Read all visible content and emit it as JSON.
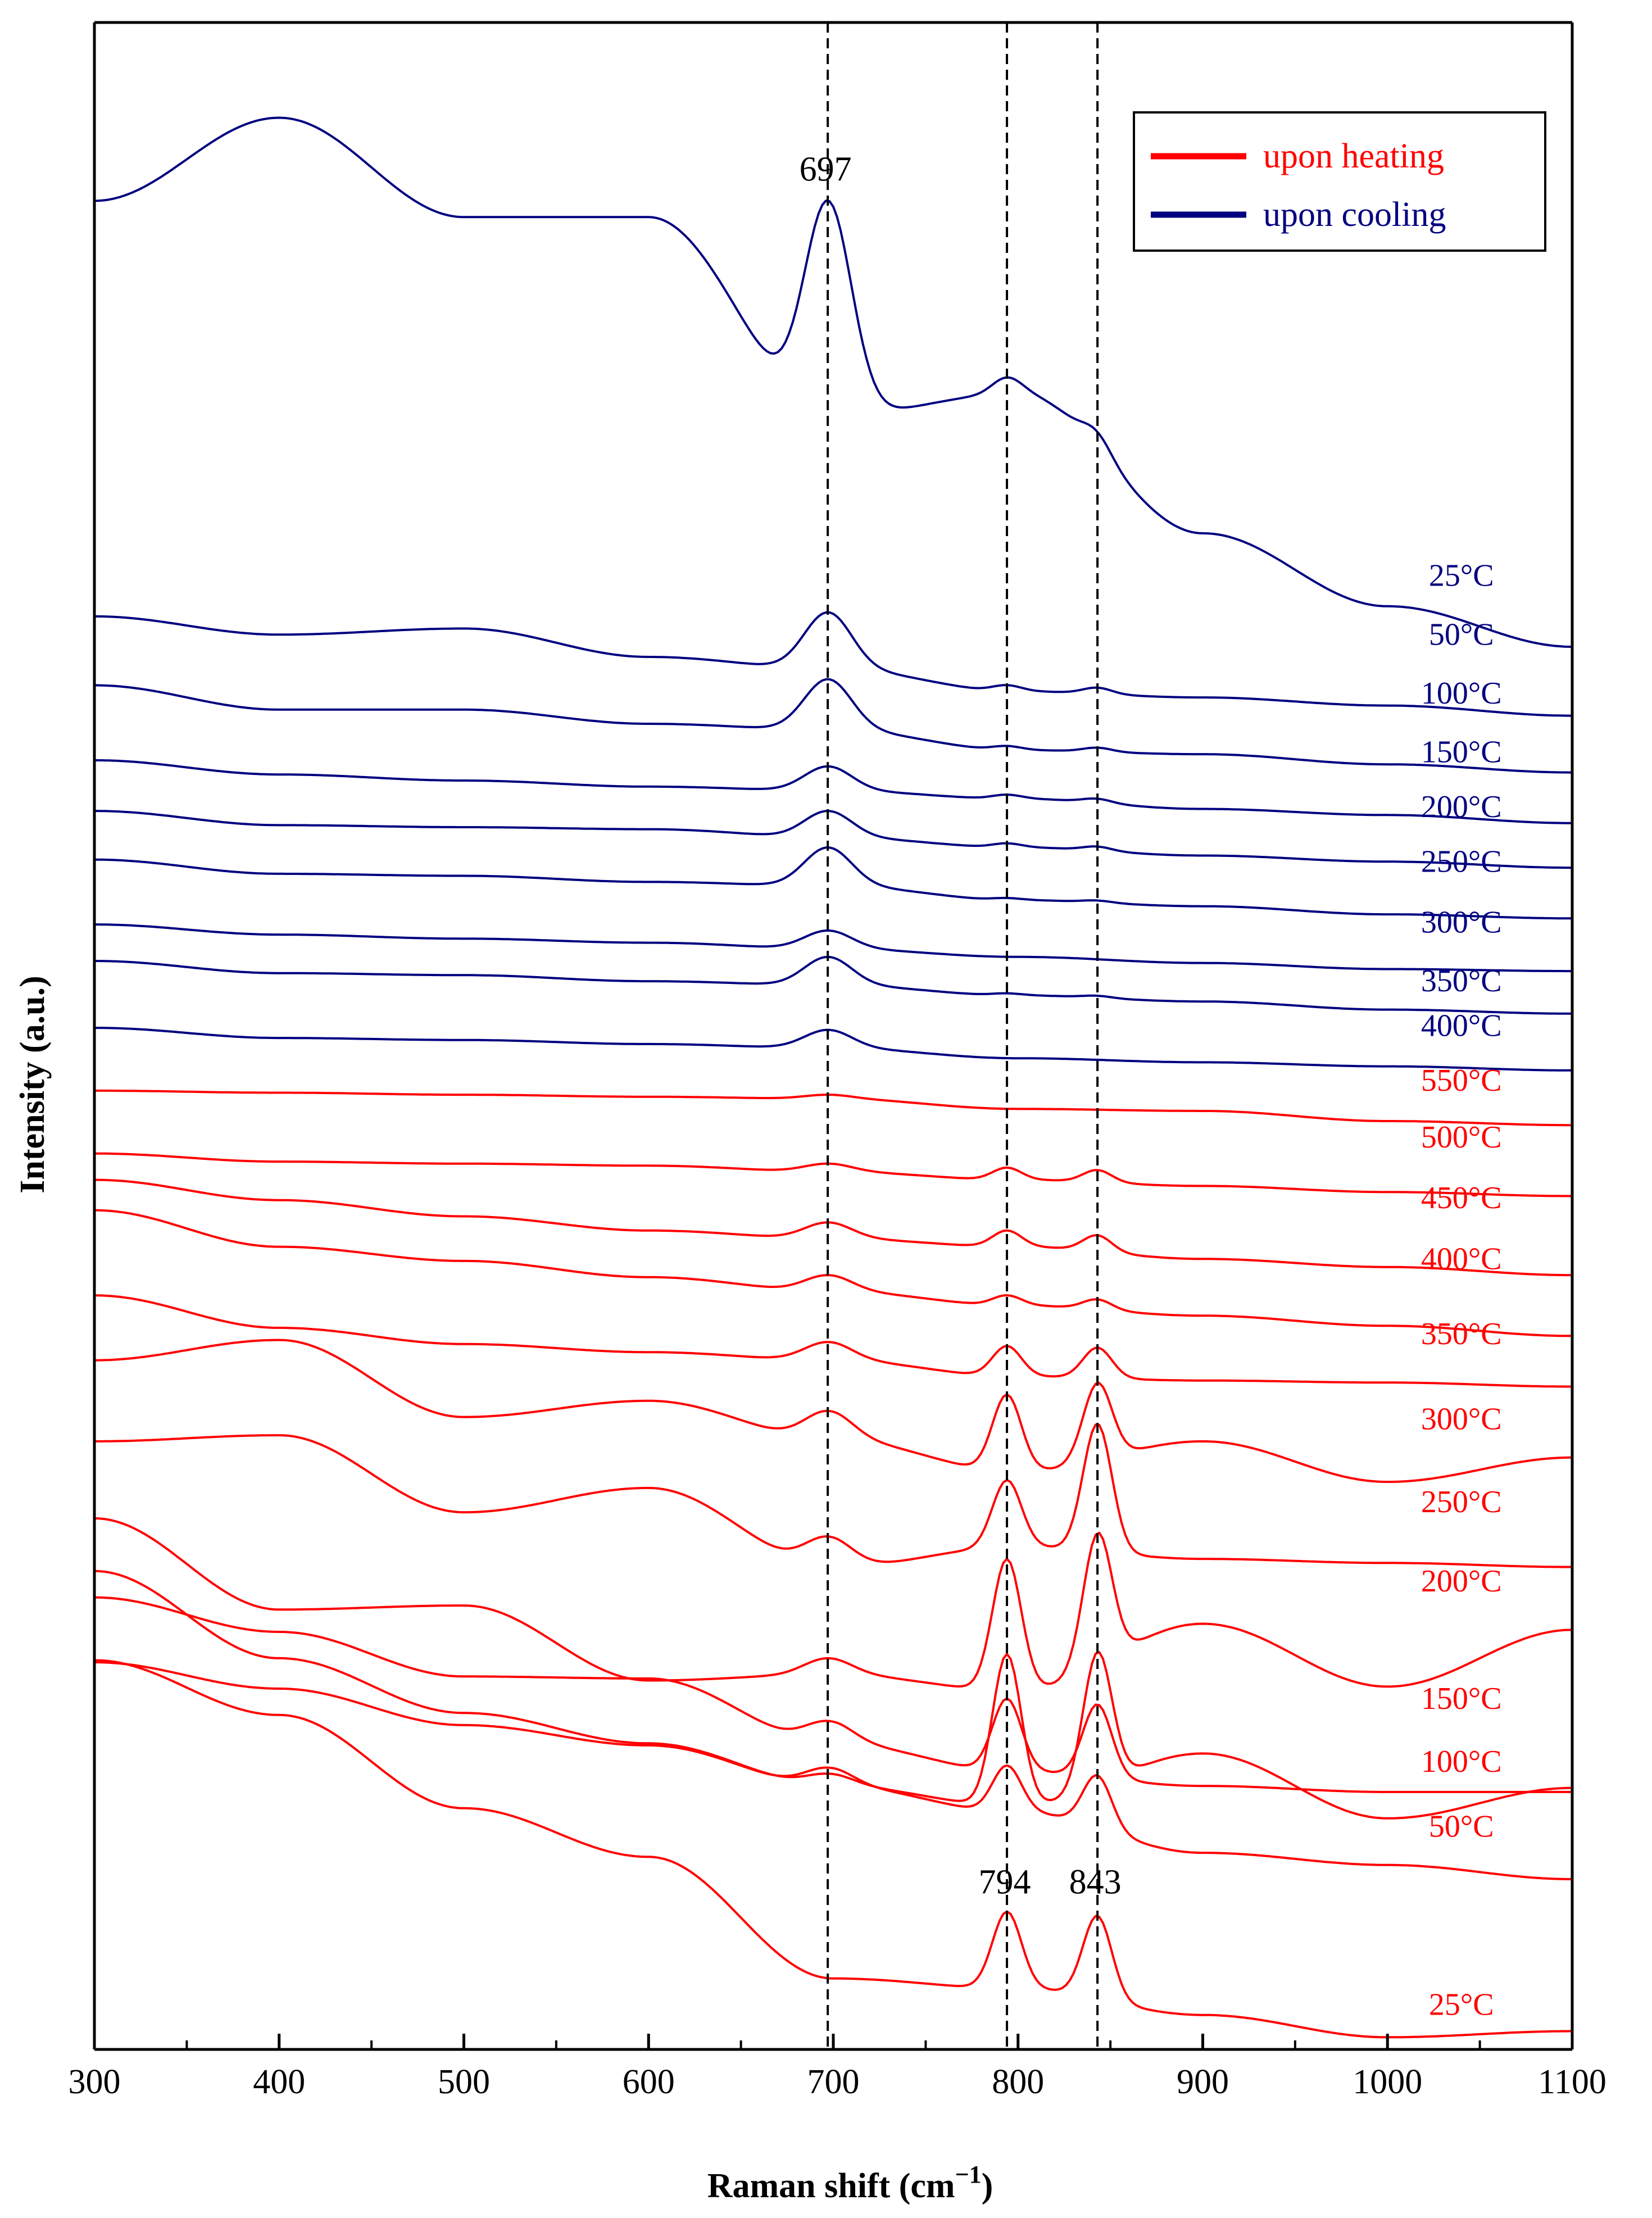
{
  "chart_data": {
    "type": "line",
    "title": "",
    "xlabel": "Raman shift (cm",
    "xlabel_sup": "−1",
    "xlabel_close": ")",
    "ylabel": "Intensity (a.u.)",
    "xlim": [
      300,
      1100
    ],
    "ylim": [
      0,
      100
    ],
    "xticks": [
      300,
      400,
      500,
      600,
      700,
      800,
      900,
      1000,
      1100
    ],
    "grid": false,
    "legend": {
      "placement": "top-right",
      "entries": [
        {
          "label": "upon heating",
          "color": "#ff0000"
        },
        {
          "label": "upon cooling",
          "color": "#000080"
        }
      ]
    },
    "reference_lines": [
      {
        "x": 697,
        "label": "697"
      },
      {
        "x": 794,
        "label": "794"
      },
      {
        "x": 843,
        "label": "843"
      }
    ],
    "peaks": [
      {
        "center": 697,
        "width": 18
      },
      {
        "center": 794,
        "width": 11
      },
      {
        "center": 843,
        "width": 11
      }
    ],
    "series": [
      {
        "name": "25°C",
        "process": "cooling",
        "color": "#000080",
        "offset": 87.8,
        "baseline": [
          3.4,
          7.5,
          2.6,
          2.6,
          -7.2,
          -6.1,
          -13.0,
          -16.6,
          -18.6
        ],
        "peaks": [
          10.6,
          0.8,
          0.8
        ],
        "label_y": 72.2,
        "label_x": 1040
      },
      {
        "name": "50°C",
        "process": "cooling",
        "color": "#000080",
        "offset": 70.4,
        "baseline": [
          0.3,
          -0.6,
          -0.3,
          -1.7,
          -2.3,
          -3.4,
          -3.7,
          -4.1,
          -4.6
        ],
        "peaks": [
          2.8,
          0.3,
          0.3
        ],
        "label_y": 69.3,
        "label_x": 1040
      },
      {
        "name": "100°C",
        "process": "cooling",
        "color": "#000080",
        "offset": 66.9,
        "baseline": [
          0.4,
          -0.8,
          -0.8,
          -1.5,
          -1.8,
          -2.8,
          -3.0,
          -3.5,
          -3.9
        ],
        "peaks": [
          2.5,
          0.2,
          0.2
        ],
        "label_y": 66.4,
        "label_x": 1040
      },
      {
        "name": "150°C",
        "process": "cooling",
        "color": "#000080",
        "offset": 63.4,
        "baseline": [
          0.2,
          -0.5,
          -0.8,
          -1.1,
          -1.3,
          -1.7,
          -2.2,
          -2.5,
          -2.9
        ],
        "peaks": [
          1.2,
          0.2,
          0.2
        ],
        "label_y": 63.5,
        "label_x": 1040
      },
      {
        "name": "200°C",
        "process": "cooling",
        "color": "#000080",
        "offset": 61.0,
        "baseline": [
          0.1,
          -0.6,
          -0.7,
          -0.8,
          -1.2,
          -1.7,
          -2.1,
          -2.4,
          -2.7
        ],
        "peaks": [
          1.3,
          0.2,
          0.2
        ],
        "label_y": 60.8,
        "label_x": 1040
      },
      {
        "name": "250°C",
        "process": "cooling",
        "color": "#000080",
        "offset": 58.5,
        "baseline": [
          0.2,
          -0.5,
          -0.6,
          -0.9,
          -1.1,
          -1.8,
          -2.1,
          -2.5,
          -2.7
        ],
        "peaks": [
          1.9,
          0.1,
          0.1
        ],
        "label_y": 58.1,
        "label_x": 1040
      },
      {
        "name": "300°C",
        "process": "cooling",
        "color": "#000080",
        "offset": 55.5,
        "baseline": [
          0.0,
          -0.5,
          -0.7,
          -0.9,
          -1.2,
          -1.6,
          -1.9,
          -2.2,
          -2.3
        ],
        "peaks": [
          0.9,
          0.0,
          0.0
        ],
        "label_y": 55.1,
        "label_x": 1040
      },
      {
        "name": "350°C",
        "process": "cooling",
        "color": "#000080",
        "offset": 53.6,
        "baseline": [
          0.1,
          -0.5,
          -0.6,
          -0.9,
          -1.1,
          -1.6,
          -1.9,
          -2.3,
          -2.5
        ],
        "peaks": [
          1.4,
          0.1,
          0.1
        ],
        "label_y": 52.2,
        "label_x": 1040
      },
      {
        "name": "400°C",
        "process": "cooling",
        "color": "#000080",
        "offset": 50.4,
        "baseline": [
          0.0,
          -0.5,
          -0.6,
          -0.8,
          -1.0,
          -1.5,
          -1.7,
          -1.9,
          -2.1
        ],
        "peaks": [
          0.9,
          0.0,
          0.0
        ],
        "label_y": 50.0,
        "label_x": 1040
      },
      {
        "name": "550°C",
        "process": "heating",
        "color": "#ff0000",
        "offset": 47.3,
        "baseline": [
          0.0,
          -0.1,
          -0.2,
          -0.3,
          -0.4,
          -0.9,
          -1.0,
          -1.5,
          -1.7
        ],
        "peaks": [
          0.2,
          0.0,
          0.0
        ],
        "label_y": 47.3,
        "label_x": 1040
      },
      {
        "name": "500°C",
        "process": "heating",
        "color": "#ff0000",
        "offset": 44.2,
        "baseline": [
          0.0,
          -0.4,
          -0.5,
          -0.6,
          -0.9,
          -1.3,
          -1.6,
          -1.9,
          -2.1
        ],
        "peaks": [
          0.4,
          0.6,
          0.6
        ],
        "label_y": 44.5,
        "label_x": 1040
      },
      {
        "name": "450°C",
        "process": "heating",
        "color": "#ff0000",
        "offset": 42.9,
        "baseline": [
          0.0,
          -1.0,
          -1.8,
          -2.5,
          -2.9,
          -3.3,
          -3.9,
          -4.3,
          -4.7
        ],
        "peaks": [
          0.8,
          0.8,
          0.8
        ],
        "label_y": 41.5,
        "label_x": 1040
      },
      {
        "name": "400°C",
        "process": "heating",
        "color": "#ff0000",
        "offset": 41.4,
        "baseline": [
          0.0,
          -1.8,
          -2.5,
          -3.3,
          -4.0,
          -4.7,
          -5.2,
          -5.7,
          -6.2
        ],
        "peaks": [
          0.8,
          0.5,
          0.5
        ],
        "label_y": 38.5,
        "label_x": 1040
      },
      {
        "name": "350°C",
        "process": "heating",
        "color": "#ff0000",
        "offset": 37.2,
        "baseline": [
          0.0,
          -1.6,
          -2.4,
          -2.8,
          -3.2,
          -4.0,
          -4.2,
          -4.3,
          -4.5
        ],
        "peaks": [
          0.9,
          1.5,
          1.5
        ],
        "label_y": 34.8,
        "label_x": 1040
      },
      {
        "name": "300°C",
        "process": "heating",
        "color": "#ff0000",
        "offset": 34.0,
        "baseline": [
          0.0,
          1.0,
          -2.8,
          -2.0,
          -3.9,
          -5.5,
          -4.0,
          -6.0,
          -4.8
        ],
        "peaks": [
          1.4,
          3.8,
          3.8
        ],
        "label_y": 30.6,
        "label_x": 1040
      },
      {
        "name": "250°C",
        "process": "heating",
        "color": "#ff0000",
        "offset": 30.0,
        "baseline": [
          0.0,
          0.3,
          -3.5,
          -2.3,
          -6.2,
          -5.2,
          -5.8,
          -6.0,
          -6.2
        ],
        "peaks": [
          1.5,
          3.3,
          6.3
        ],
        "label_y": 26.5,
        "label_x": 1040
      },
      {
        "name": "200°C",
        "process": "heating",
        "color": "#ff0000",
        "offset": 26.2,
        "baseline": [
          0.0,
          -4.5,
          -4.3,
          -8.0,
          -7.7,
          -8.5,
          -5.2,
          -8.3,
          -5.5
        ],
        "peaks": [
          0.8,
          6.5,
          6.5
        ],
        "label_y": 22.6,
        "label_x": 1040
      },
      {
        "name": "150°C",
        "process": "heating",
        "color": "#ff0000",
        "offset": 23.6,
        "baseline": [
          0.0,
          -4.3,
          -7.0,
          -8.5,
          -10.6,
          -11.6,
          -9.0,
          -12.2,
          -10.7
        ],
        "peaks": [
          0.6,
          7.5,
          6.6
        ],
        "label_y": 16.8,
        "label_x": 1040
      },
      {
        "name": "100°C",
        "process": "heating",
        "color": "#ff0000",
        "offset": 22.3,
        "baseline": [
          0.0,
          -1.7,
          -3.9,
          -4.0,
          -7.2,
          -8.6,
          -9.3,
          -9.6,
          -9.6
        ],
        "peaks": [
          1.1,
          3.6,
          3.6
        ],
        "label_y": 13.7,
        "label_x": 1040
      },
      {
        "name": "50°C",
        "process": "heating",
        "color": "#ff0000",
        "offset": 19.1,
        "baseline": [
          0.0,
          -1.3,
          -3.1,
          -4.1,
          -6.1,
          -7.4,
          -9.4,
          -10.0,
          -10.7
        ],
        "peaks": [
          0.9,
          2.3,
          2.6
        ],
        "label_y": 10.5,
        "label_x": 1040
      },
      {
        "name": "25°C",
        "process": "heating",
        "color": "#ff0000",
        "offset": 19.2,
        "baseline": [
          0.0,
          -2.7,
          -7.3,
          -9.7,
          -15.7,
          -16.2,
          -17.5,
          -18.6,
          -18.3
        ],
        "peaks": [
          0.0,
          3.8,
          4.1
        ],
        "label_y": 1.7,
        "label_x": 1040
      }
    ]
  }
}
